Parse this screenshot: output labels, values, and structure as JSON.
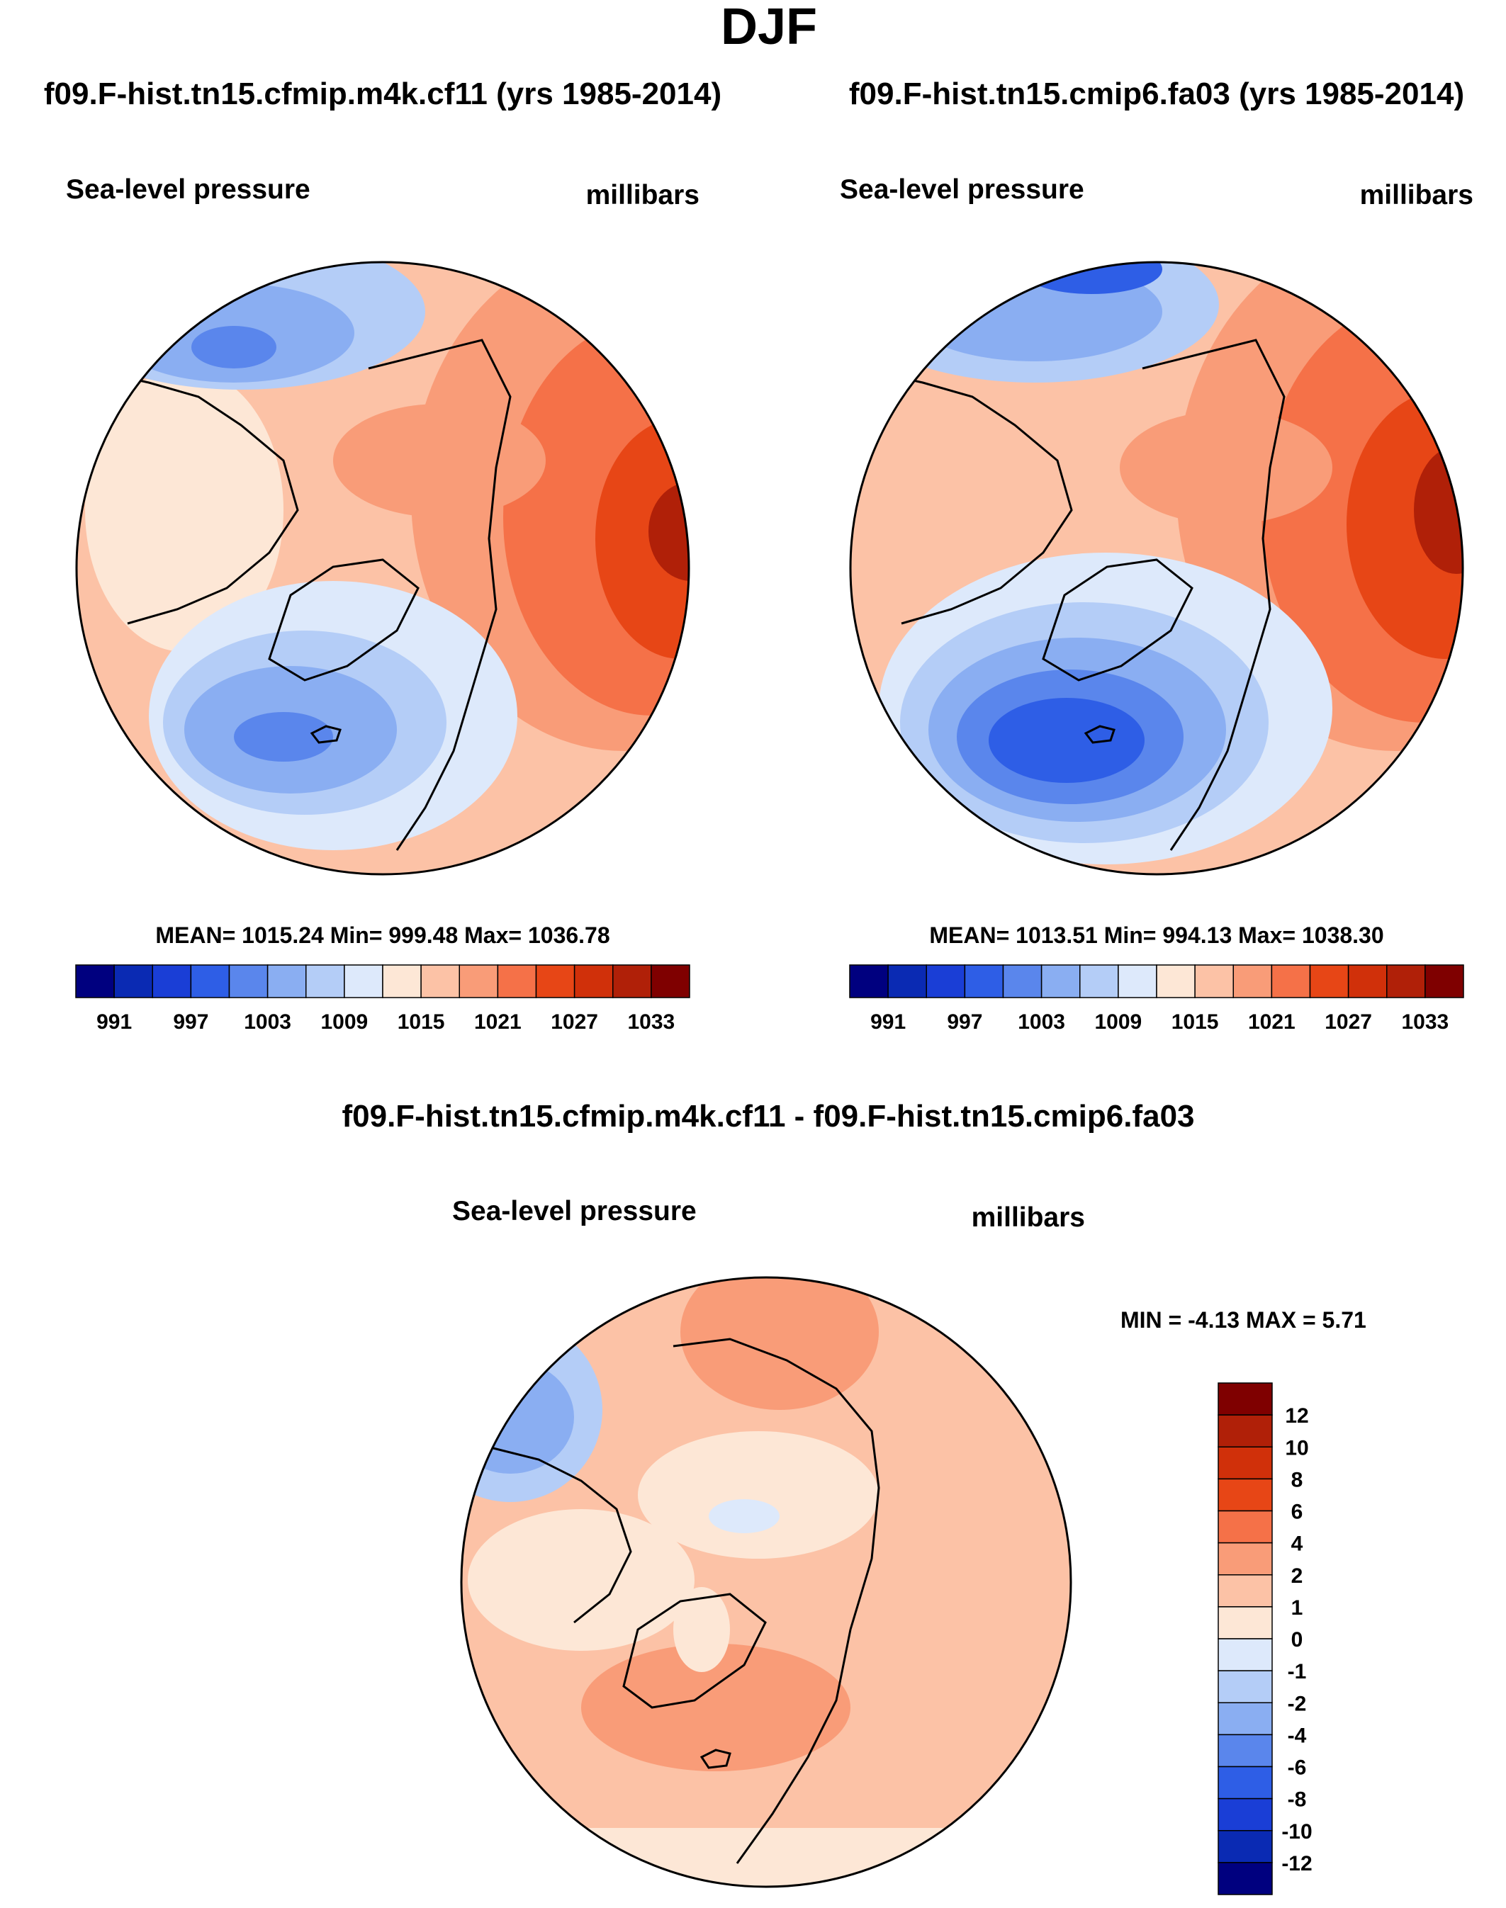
{
  "figure": {
    "season": "DJF"
  },
  "panels": [
    {
      "id": "panel-cf11",
      "case_title": "f09.F-hist.tn15.cfmip.m4k.cf11 (yrs 1985-2014)",
      "variable": "Sea-level pressure",
      "units": "millibars",
      "stats_text": "MEAN= 1015.24  Min= 999.48  Max= 1036.78",
      "stats": {
        "mean": 1015.24,
        "min": 999.48,
        "max": 1036.78
      }
    },
    {
      "id": "panel-fa03",
      "case_title": "f09.F-hist.tn15.cmip6.fa03 (yrs 1985-2014)",
      "variable": "Sea-level pressure",
      "units": "millibars",
      "stats_text": "MEAN= 1013.51  Min= 994.13  Max= 1038.30",
      "stats": {
        "mean": 1013.51,
        "min": 994.13,
        "max": 1038.3
      }
    },
    {
      "id": "panel-diff",
      "case_title": "f09.F-hist.tn15.cfmip.m4k.cf11 - f09.F-hist.tn15.cmip6.fa03",
      "variable": "Sea-level pressure",
      "units": "millibars",
      "stats_text": "MIN =  -4.13 MAX =   5.71",
      "stats": {
        "min": -4.13,
        "max": 5.71
      }
    }
  ],
  "colorbars": {
    "absolute": {
      "tick_labels": [
        "991",
        "997",
        "1003",
        "1009",
        "1015",
        "1021",
        "1027",
        "1033"
      ],
      "colors": [
        "#00007f",
        "#0a2ab3",
        "#1a3ed6",
        "#2e5ee6",
        "#5a86ec",
        "#8aaef2",
        "#b4cdf7",
        "#dde9fb",
        "#fde7d6",
        "#fcc2a6",
        "#f99c78",
        "#f57148",
        "#e74616",
        "#d0300a",
        "#b02008",
        "#7f0000"
      ]
    },
    "difference": {
      "tick_labels": [
        "12",
        "10",
        "8",
        "6",
        "4",
        "2",
        "1",
        "0",
        "-1",
        "-2",
        "-4",
        "-6",
        "-8",
        "-10",
        "-12"
      ],
      "colors": [
        "#7f0000",
        "#b02008",
        "#d0300a",
        "#e74616",
        "#f57148",
        "#f99c78",
        "#fcc2a6",
        "#fde7d6",
        "#dde9fb",
        "#b4cdf7",
        "#8aaef2",
        "#5a86ec",
        "#2e5ee6",
        "#1a3ed6",
        "#0a2ab3",
        "#00007f"
      ]
    }
  }
}
